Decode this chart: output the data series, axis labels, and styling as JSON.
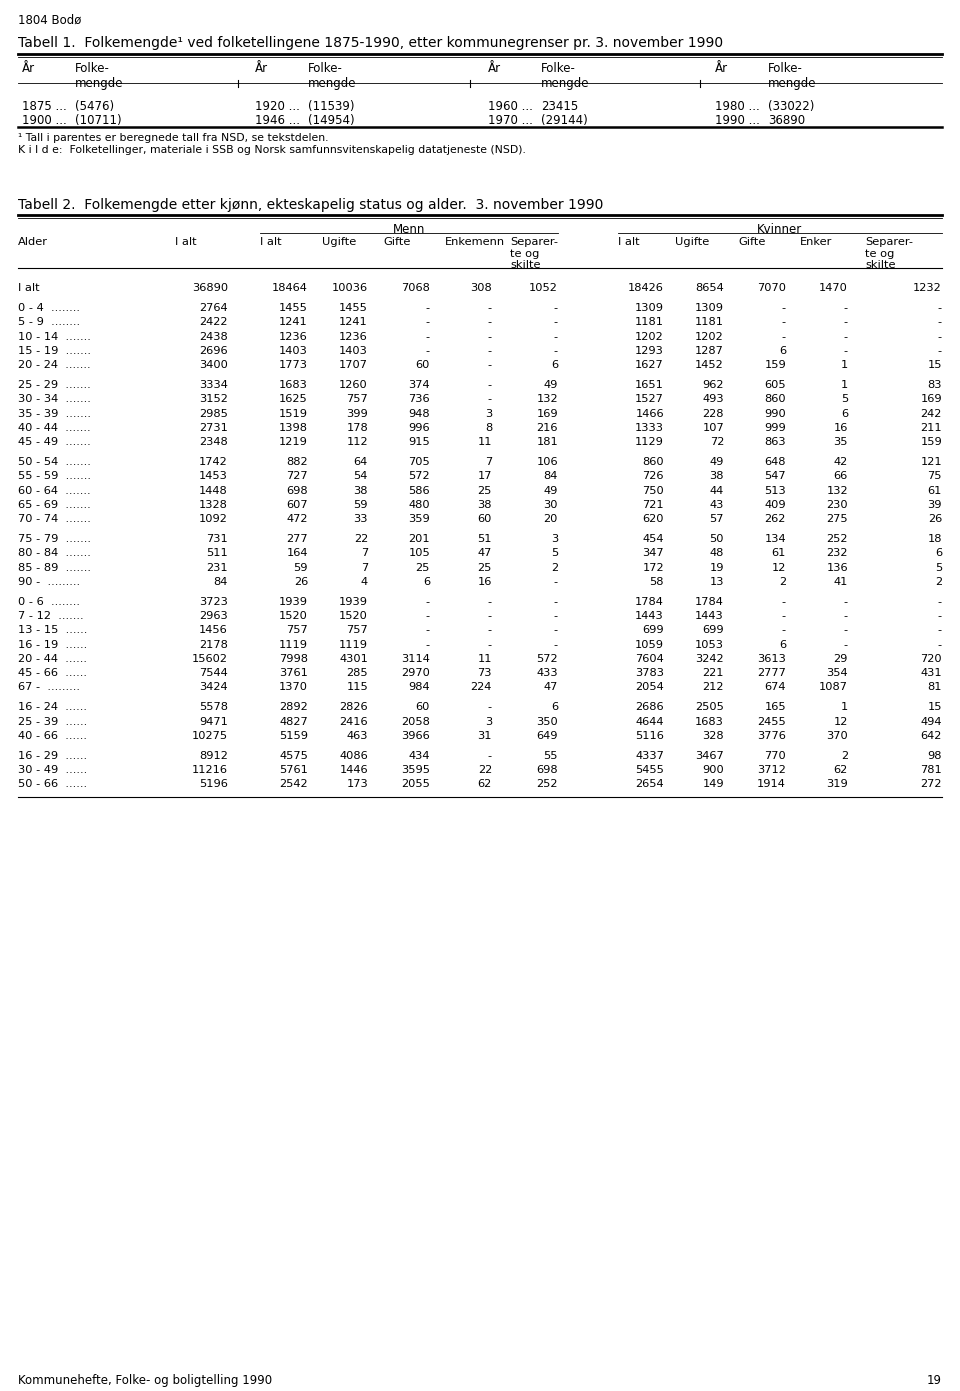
{
  "page_header": "1804 Bodø",
  "table1_title": "Tabell 1.  Folkemengde¹ ved folketellingene 1875-1990, etter kommunegrenser pr. 3. november 1990",
  "table1_data": [
    [
      "1875 ...",
      "(5476)",
      "1920 ...",
      "(11539)",
      "1960 ...",
      "23415",
      "1980 ...",
      "(33022)"
    ],
    [
      "1900 ...",
      "(10711)",
      "1946 ...",
      "(14954)",
      "1970 ...",
      "(29144)",
      "1990 ...",
      "36890"
    ]
  ],
  "table1_footnote1": "¹ Tall i parentes er beregnede tall fra NSD, se tekstdelen.",
  "table1_footnote2": "K i l d e:  Folketellinger, materiale i SSB og Norsk samfunnsvitenskapelig datatjeneste (NSD).",
  "table2_title": "Tabell 2.  Folkemengde etter kjønn, ekteskapelig status og alder.  3. november 1990",
  "table2_group_menn": "Menn",
  "table2_group_kvinner": "Kvinner",
  "footer": "Kommunehefte, Folke- og boligtelling 1990",
  "footer_page": "19",
  "table2_rows": [
    [
      "I alt           ",
      "36890",
      "18464",
      "10036",
      "7068",
      "308",
      "1052",
      "18426",
      "8654",
      "7070",
      "1470",
      "1232"
    ],
    [
      "",
      "",
      "",
      "",
      "",
      "",
      "",
      "",
      "",
      "",
      "",
      ""
    ],
    [
      "0 - 4  ........",
      "2764",
      "1455",
      "1455",
      "-",
      "-",
      "-",
      "1309",
      "1309",
      "-",
      "-",
      "-"
    ],
    [
      "5 - 9  ........",
      "2422",
      "1241",
      "1241",
      "-",
      "-",
      "-",
      "1181",
      "1181",
      "-",
      "-",
      "-"
    ],
    [
      "10 - 14  .......",
      "2438",
      "1236",
      "1236",
      "-",
      "-",
      "-",
      "1202",
      "1202",
      "-",
      "-",
      "-"
    ],
    [
      "15 - 19  .......",
      "2696",
      "1403",
      "1403",
      "-",
      "-",
      "-",
      "1293",
      "1287",
      "6",
      "-",
      "-"
    ],
    [
      "20 - 24  .......",
      "3400",
      "1773",
      "1707",
      "60",
      "-",
      "6",
      "1627",
      "1452",
      "159",
      "1",
      "15"
    ],
    [
      "",
      "",
      "",
      "",
      "",
      "",
      "",
      "",
      "",
      "",
      "",
      ""
    ],
    [
      "25 - 29  .......",
      "3334",
      "1683",
      "1260",
      "374",
      "-",
      "49",
      "1651",
      "962",
      "605",
      "1",
      "83"
    ],
    [
      "30 - 34  .......",
      "3152",
      "1625",
      "757",
      "736",
      "-",
      "132",
      "1527",
      "493",
      "860",
      "5",
      "169"
    ],
    [
      "35 - 39  .......",
      "2985",
      "1519",
      "399",
      "948",
      "3",
      "169",
      "1466",
      "228",
      "990",
      "6",
      "242"
    ],
    [
      "40 - 44  .......",
      "2731",
      "1398",
      "178",
      "996",
      "8",
      "216",
      "1333",
      "107",
      "999",
      "16",
      "211"
    ],
    [
      "45 - 49  .......",
      "2348",
      "1219",
      "112",
      "915",
      "11",
      "181",
      "1129",
      "72",
      "863",
      "35",
      "159"
    ],
    [
      "",
      "",
      "",
      "",
      "",
      "",
      "",
      "",
      "",
      "",
      "",
      ""
    ],
    [
      "50 - 54  .......",
      "1742",
      "882",
      "64",
      "705",
      "7",
      "106",
      "860",
      "49",
      "648",
      "42",
      "121"
    ],
    [
      "55 - 59  .......",
      "1453",
      "727",
      "54",
      "572",
      "17",
      "84",
      "726",
      "38",
      "547",
      "66",
      "75"
    ],
    [
      "60 - 64  .......",
      "1448",
      "698",
      "38",
      "586",
      "25",
      "49",
      "750",
      "44",
      "513",
      "132",
      "61"
    ],
    [
      "65 - 69  .......",
      "1328",
      "607",
      "59",
      "480",
      "38",
      "30",
      "721",
      "43",
      "409",
      "230",
      "39"
    ],
    [
      "70 - 74  .......",
      "1092",
      "472",
      "33",
      "359",
      "60",
      "20",
      "620",
      "57",
      "262",
      "275",
      "26"
    ],
    [
      "",
      "",
      "",
      "",
      "",
      "",
      "",
      "",
      "",
      "",
      "",
      ""
    ],
    [
      "75 - 79  .......",
      "731",
      "277",
      "22",
      "201",
      "51",
      "3",
      "454",
      "50",
      "134",
      "252",
      "18"
    ],
    [
      "80 - 84  .......",
      "511",
      "164",
      "7",
      "105",
      "47",
      "5",
      "347",
      "48",
      "61",
      "232",
      "6"
    ],
    [
      "85 - 89  .......",
      "231",
      "59",
      "7",
      "25",
      "25",
      "2",
      "172",
      "19",
      "12",
      "136",
      "5"
    ],
    [
      "90 -  .........",
      "84",
      "26",
      "4",
      "6",
      "16",
      "-",
      "58",
      "13",
      "2",
      "41",
      "2"
    ],
    [
      "",
      "",
      "",
      "",
      "",
      "",
      "",
      "",
      "",
      "",
      "",
      ""
    ],
    [
      "0 - 6  ........",
      "3723",
      "1939",
      "1939",
      "-",
      "-",
      "-",
      "1784",
      "1784",
      "-",
      "-",
      "-"
    ],
    [
      "7 - 12  .......",
      "2963",
      "1520",
      "1520",
      "-",
      "-",
      "-",
      "1443",
      "1443",
      "-",
      "-",
      "-"
    ],
    [
      "13 - 15  ......",
      "1456",
      "757",
      "757",
      "-",
      "-",
      "-",
      "699",
      "699",
      "-",
      "-",
      "-"
    ],
    [
      "16 - 19  ......",
      "2178",
      "1119",
      "1119",
      "-",
      "-",
      "-",
      "1059",
      "1053",
      "6",
      "-",
      "-"
    ],
    [
      "20 - 44  ......",
      "15602",
      "7998",
      "4301",
      "3114",
      "11",
      "572",
      "7604",
      "3242",
      "3613",
      "29",
      "720"
    ],
    [
      "45 - 66  ......",
      "7544",
      "3761",
      "285",
      "2970",
      "73",
      "433",
      "3783",
      "221",
      "2777",
      "354",
      "431"
    ],
    [
      "67 -  .........",
      "3424",
      "1370",
      "115",
      "984",
      "224",
      "47",
      "2054",
      "212",
      "674",
      "1087",
      "81"
    ],
    [
      "",
      "",
      "",
      "",
      "",
      "",
      "",
      "",
      "",
      "",
      "",
      ""
    ],
    [
      "16 - 24  ......",
      "5578",
      "2892",
      "2826",
      "60",
      "-",
      "6",
      "2686",
      "2505",
      "165",
      "1",
      "15"
    ],
    [
      "25 - 39  ......",
      "9471",
      "4827",
      "2416",
      "2058",
      "3",
      "350",
      "4644",
      "1683",
      "2455",
      "12",
      "494"
    ],
    [
      "40 - 66  ......",
      "10275",
      "5159",
      "463",
      "3966",
      "31",
      "649",
      "5116",
      "328",
      "3776",
      "370",
      "642"
    ],
    [
      "",
      "",
      "",
      "",
      "",
      "",
      "",
      "",
      "",
      "",
      "",
      ""
    ],
    [
      "16 - 29  ......",
      "8912",
      "4575",
      "4086",
      "434",
      "-",
      "55",
      "4337",
      "3467",
      "770",
      "2",
      "98"
    ],
    [
      "30 - 49  ......",
      "11216",
      "5761",
      "1446",
      "3595",
      "22",
      "698",
      "5455",
      "900",
      "3712",
      "62",
      "781"
    ],
    [
      "50 - 66  ......",
      "5196",
      "2542",
      "173",
      "2055",
      "62",
      "252",
      "2654",
      "149",
      "1914",
      "319",
      "272"
    ]
  ]
}
